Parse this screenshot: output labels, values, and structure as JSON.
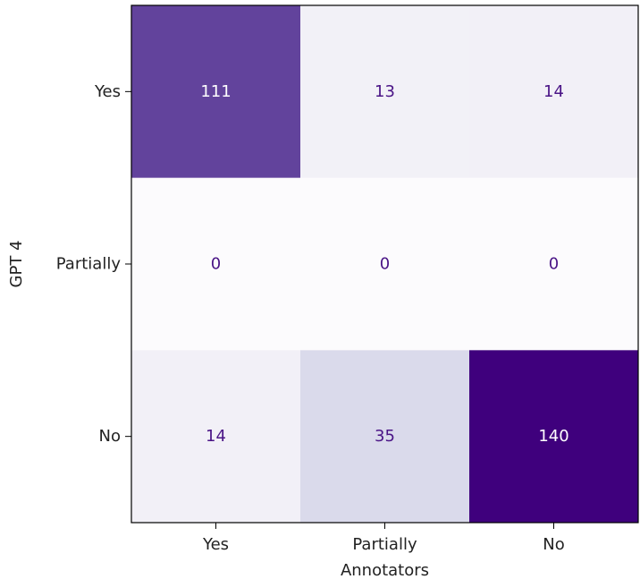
{
  "chart_data": {
    "type": "heatmap",
    "title": "",
    "xlabel": "Annotators",
    "ylabel": "GPT 4",
    "x_categories": [
      "Yes",
      "Partially",
      "No"
    ],
    "y_categories": [
      "Yes",
      "Partially",
      "No"
    ],
    "values": [
      [
        111,
        13,
        14
      ],
      [
        0,
        0,
        0
      ],
      [
        14,
        35,
        140
      ]
    ],
    "colormap": "Purples",
    "vmin": 0,
    "vmax": 140,
    "grid": false,
    "colors": {
      "low": "#fcfbfd",
      "high": "#3f007d",
      "dark_text": "#4a1486",
      "light_text": "#ffffff"
    }
  }
}
